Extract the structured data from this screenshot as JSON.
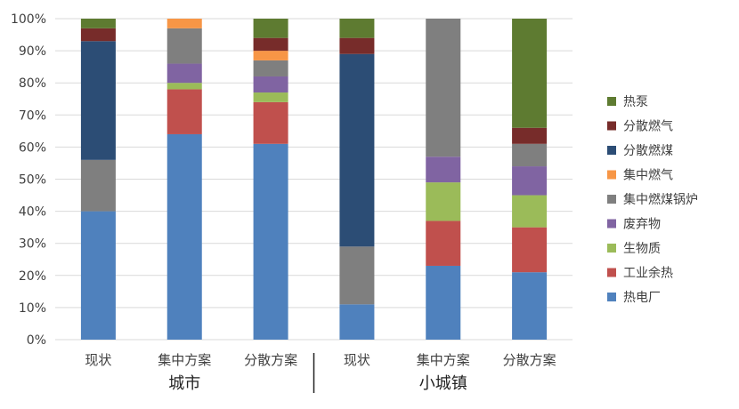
{
  "chart_data": {
    "type": "bar",
    "stacked": true,
    "percent": true,
    "ylim": [
      0,
      100
    ],
    "y_ticks": [
      "0%",
      "10%",
      "20%",
      "30%",
      "40%",
      "50%",
      "60%",
      "70%",
      "80%",
      "90%",
      "100%"
    ],
    "groups": [
      {
        "label": "城市",
        "categories": [
          "现状",
          "集中方案",
          "分散方案"
        ]
      },
      {
        "label": "小城镇",
        "categories": [
          "现状",
          "集中方案",
          "分散方案"
        ]
      }
    ],
    "categories": [
      "现状",
      "集中方案",
      "分散方案",
      "现状",
      "集中方案",
      "分散方案"
    ],
    "series": [
      {
        "name": "热电厂",
        "color": "#4F81BD",
        "values": [
          40,
          64,
          61,
          11,
          23,
          21
        ]
      },
      {
        "name": "工业余热",
        "color": "#C0504D",
        "values": [
          0,
          14,
          13,
          0,
          14,
          14
        ]
      },
      {
        "name": "生物质",
        "color": "#9BBB59",
        "values": [
          0,
          2,
          3,
          0,
          12,
          10
        ]
      },
      {
        "name": "废弃物",
        "color": "#8064A2",
        "values": [
          0,
          6,
          5,
          0,
          8,
          9
        ]
      },
      {
        "name": "集中燃煤锅炉",
        "color": "#7F7F7F",
        "values": [
          16,
          11,
          5,
          18,
          43,
          7
        ]
      },
      {
        "name": "集中燃气",
        "color": "#F79646",
        "values": [
          0,
          3,
          3,
          0,
          0,
          0
        ]
      },
      {
        "name": "分散燃煤",
        "color": "#2C4D75",
        "values": [
          37,
          0,
          0,
          60,
          0,
          0
        ]
      },
      {
        "name": "分散燃气",
        "color": "#772C2A",
        "values": [
          4,
          0,
          4,
          5,
          0,
          5
        ]
      },
      {
        "name": "热泵",
        "color": "#5E7B31",
        "values": [
          3,
          0,
          6,
          6,
          0,
          34
        ]
      }
    ],
    "legend_order": [
      "热泵",
      "分散燃气",
      "分散燃煤",
      "集中燃气",
      "集中燃煤锅炉",
      "废弃物",
      "生物质",
      "工业余热",
      "热电厂"
    ],
    "legend_position": "right",
    "grid": true
  }
}
